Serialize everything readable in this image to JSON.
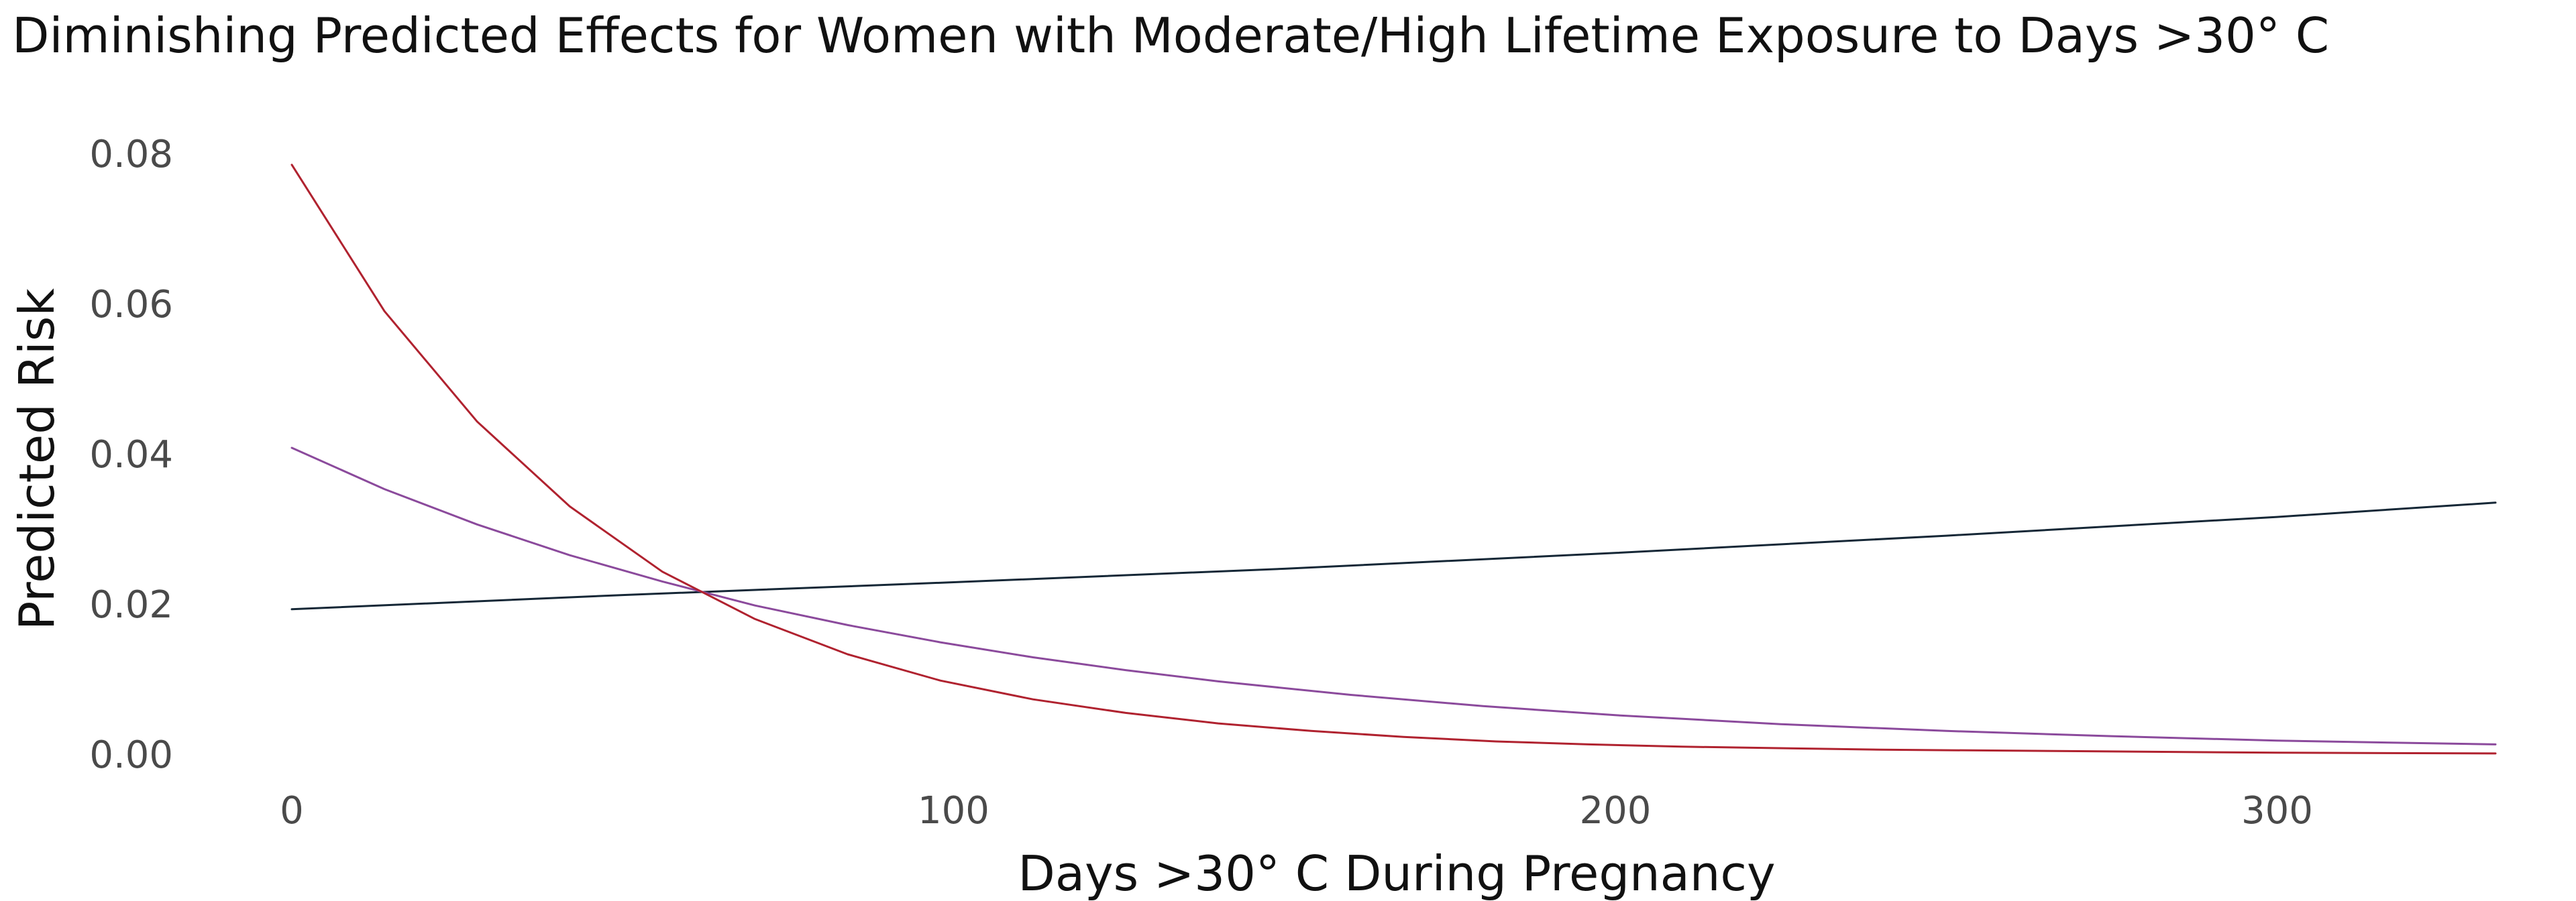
{
  "chart_data": {
    "type": "line",
    "title": "Diminishing Predicted Effects for Women with Moderate/High Lifetime Exposure to Days >30° C",
    "xlabel": "Days >30° C During Pregnancy",
    "ylabel": "Predicted Risk",
    "xlim": [
      0,
      333
    ],
    "ylim": [
      0,
      0.08
    ],
    "x_ticks": [
      0,
      100,
      200,
      300
    ],
    "x_tick_labels": [
      "0",
      "100",
      "200",
      "300"
    ],
    "y_ticks": [
      0,
      0.02,
      0.04,
      0.06,
      0.08
    ],
    "y_tick_labels": [
      "0.00",
      "0.02",
      "0.04",
      "0.06",
      "0.08"
    ],
    "grid": false,
    "legend": "none",
    "series": [
      {
        "color": "#152736",
        "x": [
          0,
          50,
          100,
          150,
          200,
          250,
          300,
          333
        ],
        "y": [
          0.0193,
          0.0212,
          0.0229,
          0.0247,
          0.0268,
          0.0291,
          0.0316,
          0.0335
        ]
      },
      {
        "color": "#8b4a9c",
        "x": [
          0,
          14,
          28,
          42,
          56,
          70,
          84,
          98,
          112,
          126,
          140,
          160,
          180,
          200,
          225,
          250,
          275,
          300,
          333
        ],
        "y": [
          0.0408,
          0.0353,
          0.0306,
          0.0265,
          0.023,
          0.0198,
          0.0172,
          0.0149,
          0.0129,
          0.0112,
          0.0097,
          0.0079,
          0.0064,
          0.0052,
          0.004,
          0.0031,
          0.0024,
          0.0018,
          0.0013
        ]
      },
      {
        "color": "#b0222f",
        "x": [
          0,
          14,
          28,
          42,
          56,
          70,
          84,
          98,
          112,
          126,
          140,
          154,
          168,
          182,
          196,
          210,
          240,
          270,
          300,
          333
        ],
        "y": [
          0.0785,
          0.059,
          0.0443,
          0.033,
          0.0243,
          0.018,
          0.0133,
          0.0098,
          0.0073,
          0.0055,
          0.0041,
          0.0031,
          0.0023,
          0.0017,
          0.0013,
          0.001,
          0.0006,
          0.0004,
          0.0002,
          0.0001
        ]
      }
    ]
  }
}
